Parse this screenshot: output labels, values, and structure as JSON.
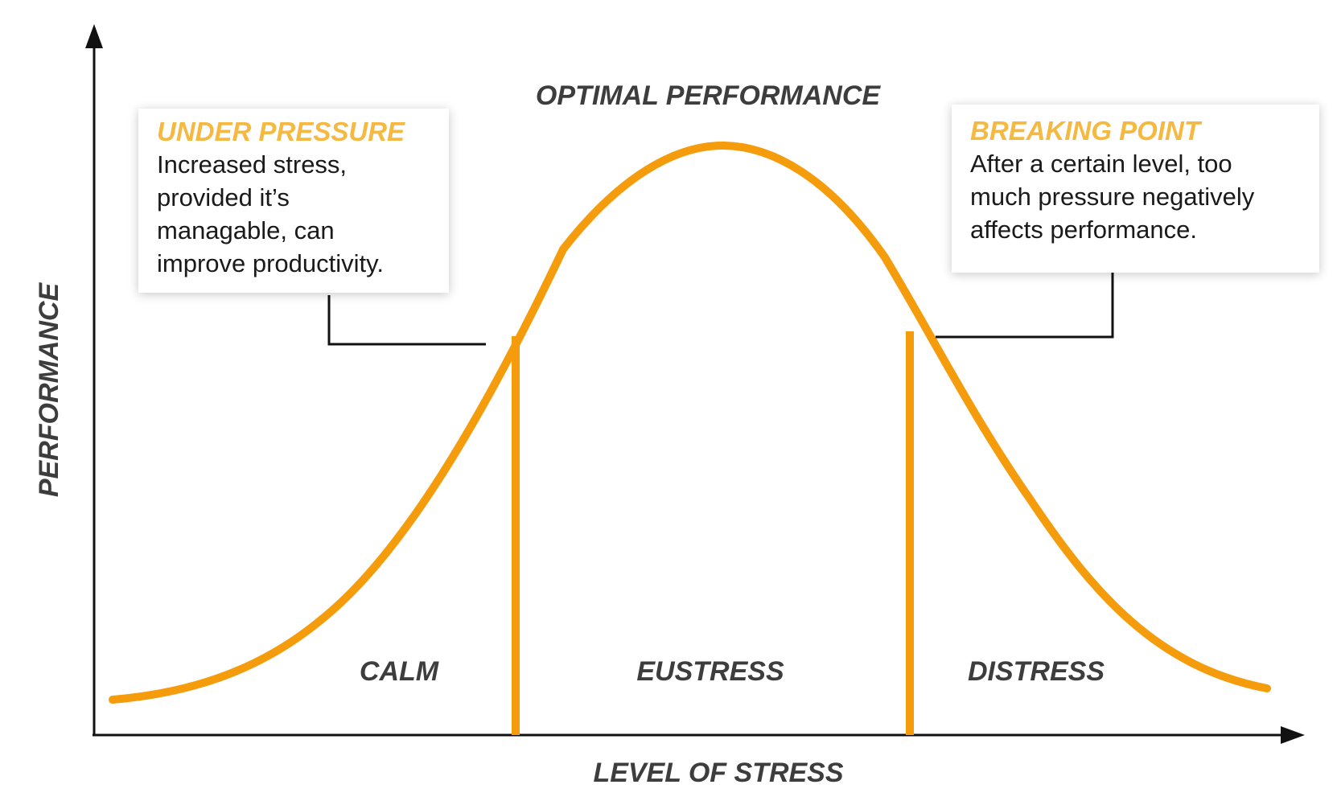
{
  "labels": {
    "top": "OPTIMAL PERFORMANCE",
    "y_axis": "PERFORMANCE",
    "x_axis": "LEVEL OF STRESS"
  },
  "zones": [
    {
      "label": "CALM"
    },
    {
      "label": "EUSTRESS"
    },
    {
      "label": "DISTRESS"
    }
  ],
  "callouts": {
    "under_pressure": {
      "title": "UNDER PRESSURE",
      "lines": [
        "Increased stress,",
        "provided it’s",
        "managable, can",
        "improve productivity."
      ]
    },
    "breaking_point": {
      "title": "BREAKING POINT",
      "lines": [
        "After a certain level, too",
        "much pressure negatively",
        "affects performance."
      ]
    }
  },
  "colors": {
    "curve": "#f59c0d",
    "callout_title": "#f5b942",
    "label": "#3d3d3d",
    "axis": "#111111"
  }
}
